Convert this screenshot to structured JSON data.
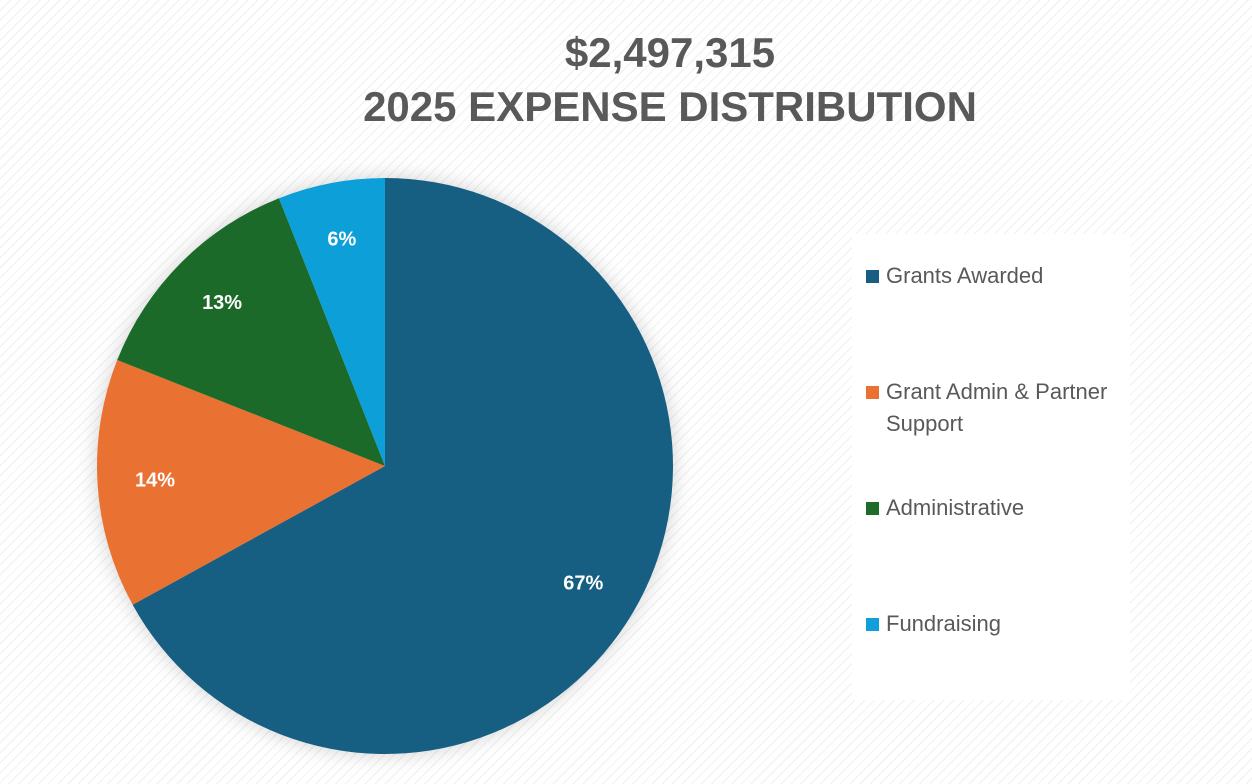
{
  "chart_data": {
    "type": "pie",
    "title_lines": [
      "$2,497,315",
      "2025 EXPENSE DISTRIBUTION"
    ],
    "slices": [
      {
        "label": "Grants Awarded",
        "value": 67,
        "display": "67%",
        "color": "#175E82"
      },
      {
        "label": "Grant Admin & Partner Support",
        "value": 14,
        "display": "14%",
        "color": "#E97132"
      },
      {
        "label": "Administrative",
        "value": 13,
        "display": "13%",
        "color": "#1E6B2A"
      },
      {
        "label": "Fundraising",
        "value": 6,
        "display": "6%",
        "color": "#109FD8"
      }
    ],
    "start_angle_deg": 0,
    "direction": "clockwise",
    "legend_position": "right"
  }
}
